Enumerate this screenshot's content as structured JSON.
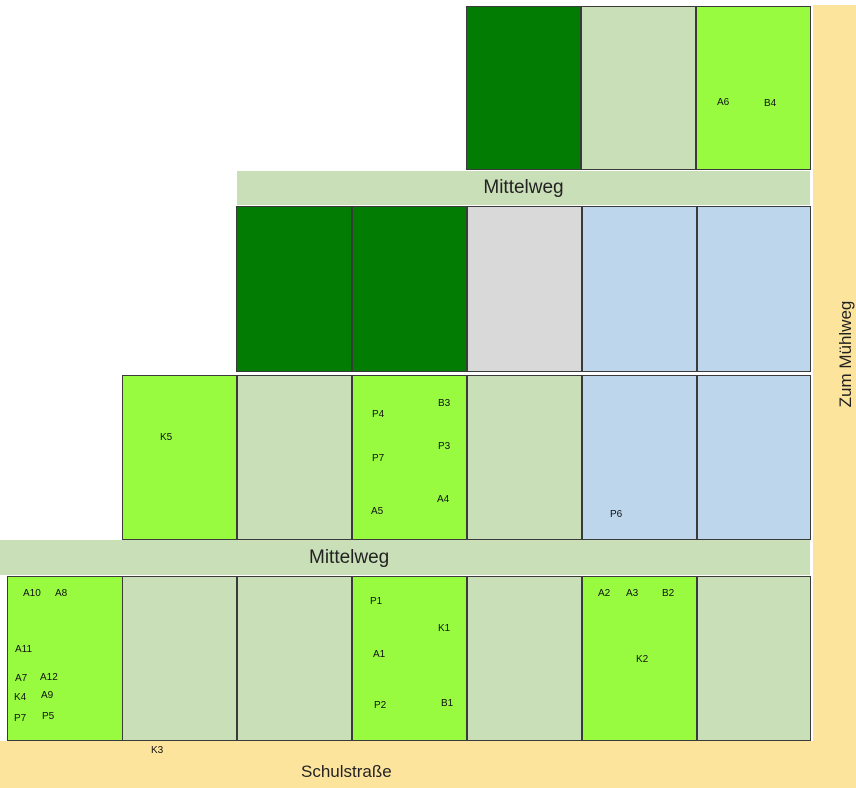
{
  "colors": {
    "road": "#fde49c",
    "path": "#c9dfb7",
    "dark_green": "#027c02",
    "light_green": "#98fb40",
    "pale_green": "#c9dfb7",
    "gray": "#d9d9d9",
    "blue": "#bdd6ec",
    "border": "#3a3a3a"
  },
  "roads": {
    "east": "Zum Mühlweg",
    "south": "Schulstraße",
    "path_top": "Mittelweg",
    "path_middle": "Mittelweg"
  },
  "plot_rows": [
    {
      "row": "top",
      "plots": [
        {
          "fill": "dark_green",
          "labels": []
        },
        {
          "fill": "pale_green",
          "labels": []
        },
        {
          "fill": "light_green",
          "labels": [
            "A6",
            "B4"
          ]
        }
      ]
    },
    {
      "row": "second",
      "plots": [
        {
          "fill": "dark_green",
          "labels": []
        },
        {
          "fill": "dark_green",
          "labels": []
        },
        {
          "fill": "gray",
          "labels": []
        },
        {
          "fill": "blue",
          "labels": []
        },
        {
          "fill": "blue",
          "labels": []
        }
      ]
    },
    {
      "row": "third",
      "plots": [
        {
          "fill": "light_green",
          "labels": [
            "K5"
          ]
        },
        {
          "fill": "pale_green",
          "labels": []
        },
        {
          "fill": "light_green",
          "labels": [
            "P4",
            "B3",
            "P3",
            "P7",
            "A4",
            "A5"
          ]
        },
        {
          "fill": "pale_green",
          "labels": []
        },
        {
          "fill": "blue",
          "labels": [
            "P6"
          ]
        },
        {
          "fill": "blue",
          "labels": []
        }
      ]
    },
    {
      "row": "bottom",
      "plots": [
        {
          "fill": "light_green",
          "labels": [
            "A10",
            "A8",
            "A11",
            "A7",
            "A12",
            "K4",
            "A9",
            "P7",
            "P5"
          ]
        },
        {
          "fill": "pale_green",
          "labels": []
        },
        {
          "fill": "pale_green",
          "labels": []
        },
        {
          "fill": "light_green",
          "labels": [
            "P1",
            "K1",
            "A1",
            "P2",
            "B1"
          ]
        },
        {
          "fill": "pale_green",
          "labels": []
        },
        {
          "fill": "light_green",
          "labels": [
            "A2",
            "A3",
            "B2",
            "K2"
          ]
        },
        {
          "fill": "pale_green",
          "labels": []
        }
      ]
    }
  ],
  "outside_labels": [
    "K3"
  ]
}
